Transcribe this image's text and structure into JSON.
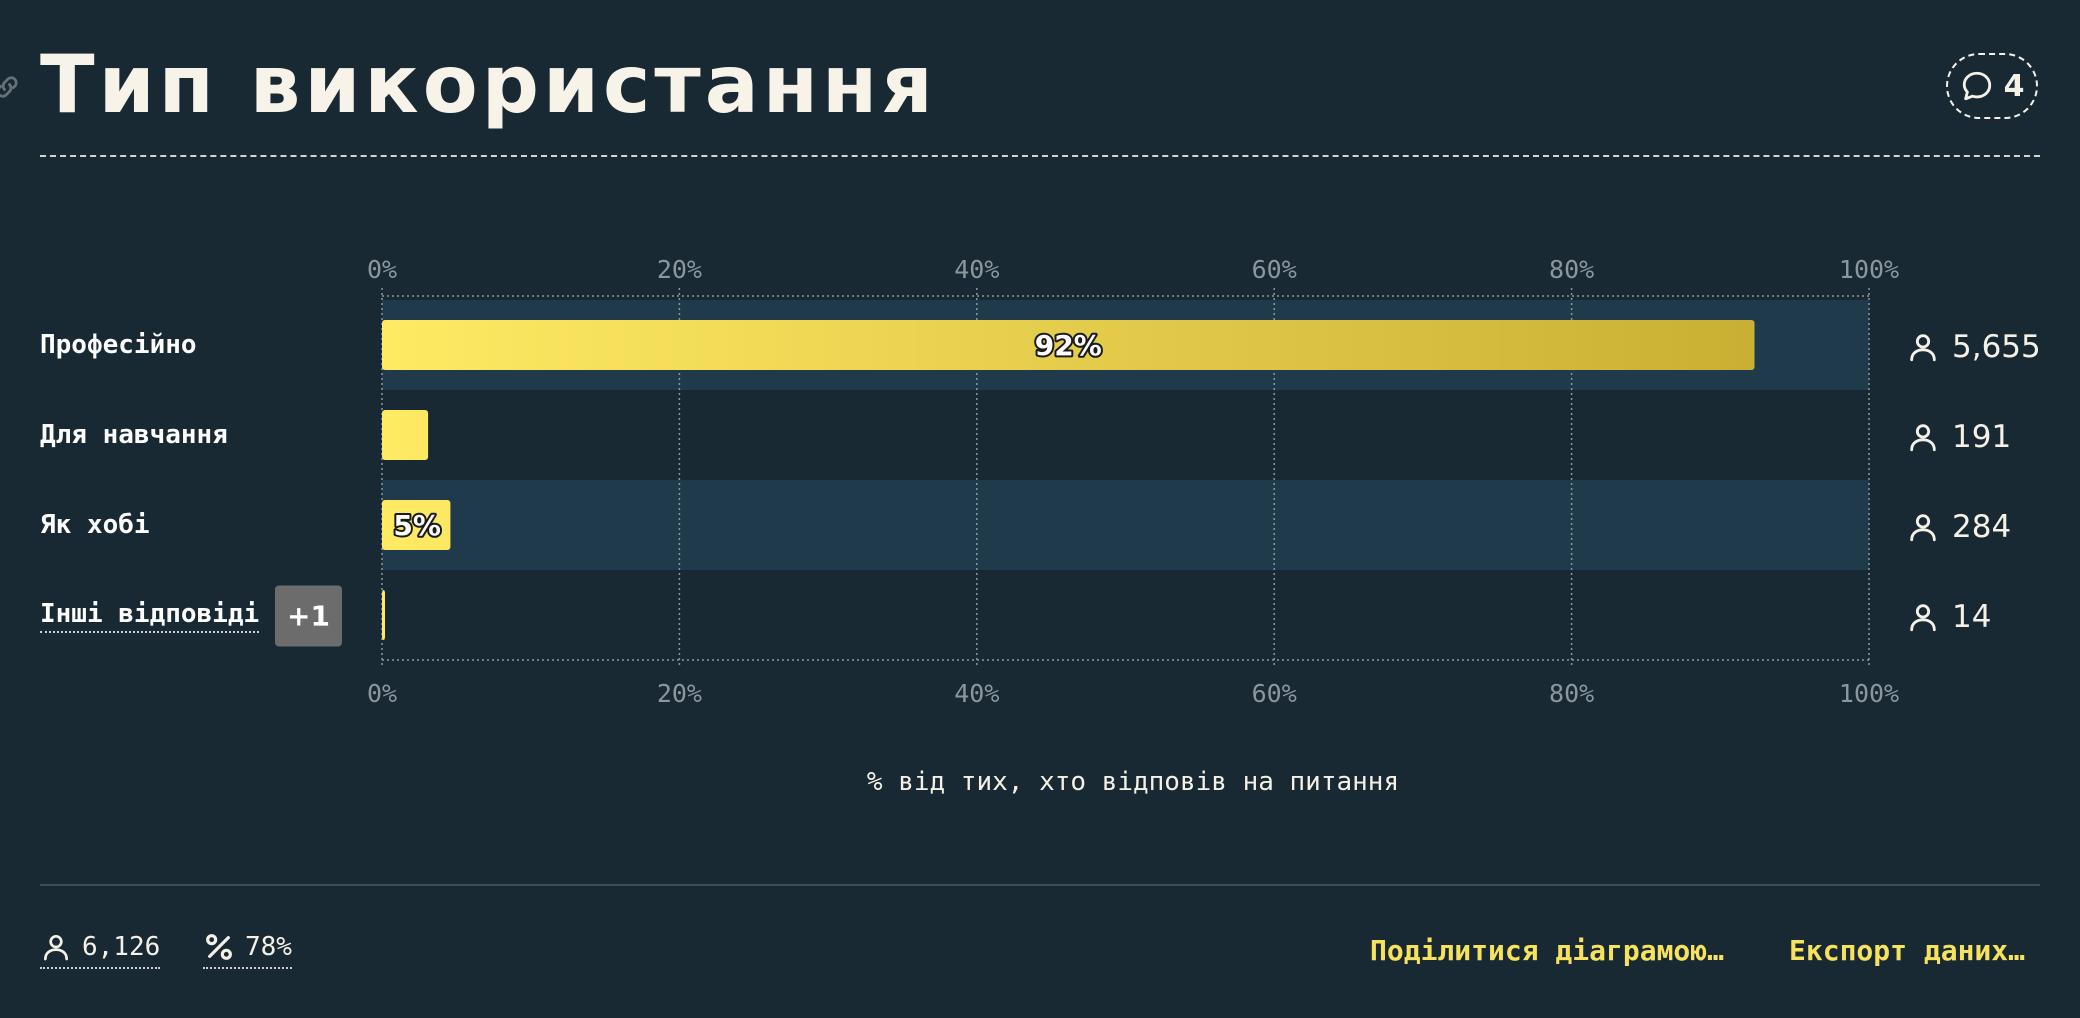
{
  "header": {
    "title": "Тип використання",
    "comment_count": "4"
  },
  "chart_data": {
    "type": "bar",
    "orientation": "horizontal",
    "categories": [
      "Професійно",
      "Для навчання",
      "Як хобі",
      "Інші відповіді"
    ],
    "values": [
      92.3,
      3.1,
      4.6,
      0.2
    ],
    "data_labels": [
      "92%",
      "",
      "5%",
      ""
    ],
    "respondents": [
      "5,655",
      "191",
      "284",
      "14"
    ],
    "xlim": [
      0,
      100
    ],
    "ticks": [
      "0%",
      "20%",
      "40%",
      "60%",
      "80%",
      "100%"
    ],
    "xlabel": "% від тих, хто відповів на питання",
    "grid": true,
    "bar_color": [
      "#ffea64",
      "#c4ab2f"
    ],
    "other_responses_badge": "+1"
  },
  "footer": {
    "respondents_total": "6,126",
    "response_rate": "78%",
    "share_label": "Поділитися діаграмою…",
    "export_label": "Експорт даних…"
  },
  "colors": {
    "background": "#182933",
    "row_highlight": "#1f3a4b",
    "accent": "#f7e25e"
  }
}
